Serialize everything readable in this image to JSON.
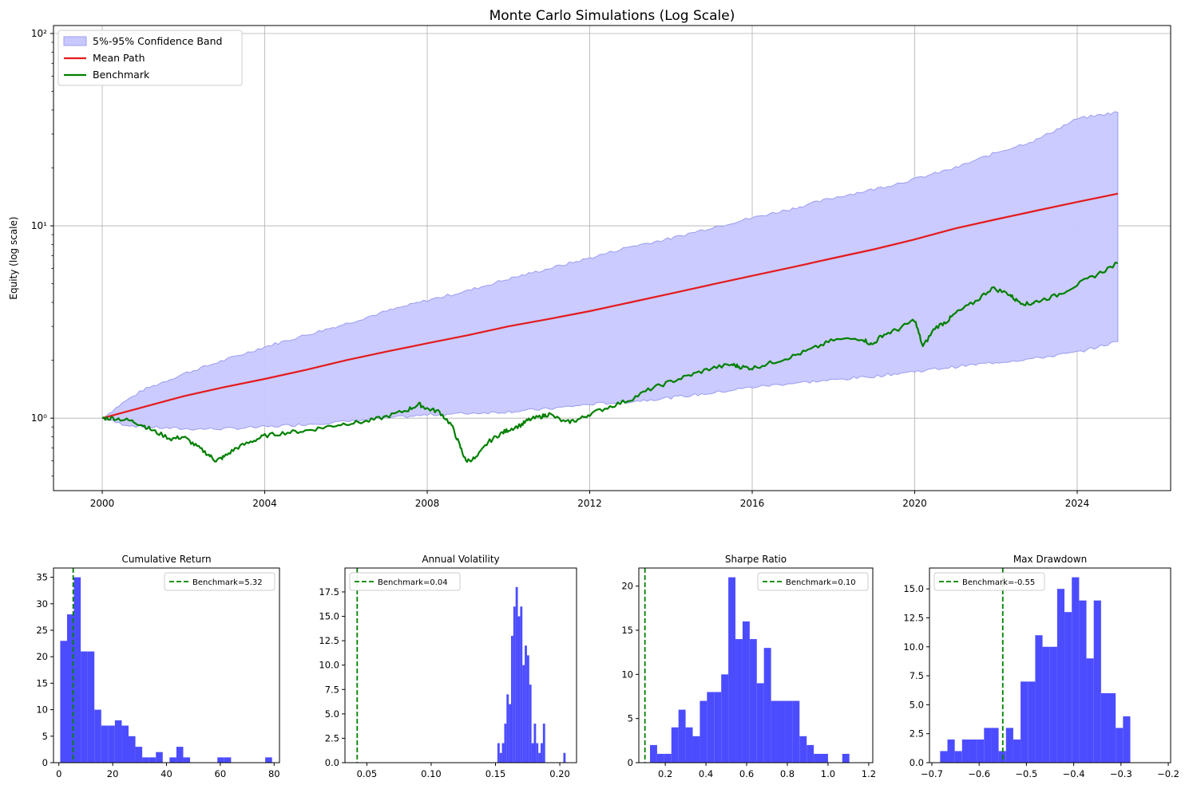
{
  "chart_data": [
    {
      "type": "line",
      "title": "Monte Carlo Simulations (Log Scale)",
      "xlabel": "",
      "ylabel": "Equity (log scale)",
      "yscale": "log",
      "xlim": [
        1998.8,
        2026.3
      ],
      "ylim": [
        0.42,
        110
      ],
      "xticks": [
        2000,
        2004,
        2008,
        2012,
        2016,
        2020,
        2024
      ],
      "xtick_labels": [
        "2000",
        "2004",
        "2008",
        "2012",
        "2016",
        "2020",
        "2024"
      ],
      "yticks": [
        1,
        10,
        100
      ],
      "ytick_labels": [
        "10⁰",
        "10¹",
        "10²"
      ],
      "grid": true,
      "legend_position": "top-left",
      "colors": {
        "band": "#c8c8ff",
        "band_edge": "#9c9cf0",
        "mean": "#e41a1c",
        "benchmark": "#008000"
      },
      "legend": [
        {
          "label": "5%-95% Confidence Band",
          "kind": "band"
        },
        {
          "label": "Mean Path",
          "kind": "mean"
        },
        {
          "label": "Benchmark",
          "kind": "benchmark"
        }
      ],
      "band": {
        "x": [
          2000,
          2000.5,
          2001,
          2002,
          2003,
          2004,
          2005,
          2006,
          2007,
          2008,
          2009,
          2010,
          2011,
          2012,
          2013,
          2014,
          2015,
          2016,
          2017,
          2018,
          2019,
          2020,
          2021,
          2022,
          2023,
          2024,
          2025
        ],
        "lower": [
          1.0,
          0.93,
          0.9,
          0.88,
          0.88,
          0.9,
          0.93,
          0.96,
          1.0,
          1.04,
          1.06,
          1.08,
          1.12,
          1.18,
          1.22,
          1.28,
          1.35,
          1.45,
          1.52,
          1.58,
          1.65,
          1.75,
          1.85,
          1.95,
          2.05,
          2.2,
          2.5
        ],
        "upper": [
          1.0,
          1.2,
          1.4,
          1.7,
          2.0,
          2.35,
          2.7,
          3.1,
          3.6,
          4.1,
          4.6,
          5.3,
          6.0,
          6.8,
          7.8,
          8.6,
          9.8,
          11.0,
          12.3,
          14.0,
          15.5,
          17.5,
          20.0,
          24.0,
          28.0,
          36.0,
          39.0
        ]
      },
      "series": [
        {
          "name": "Mean Path",
          "x": [
            2000,
            2001,
            2002,
            2003,
            2004,
            2005,
            2006,
            2007,
            2008,
            2009,
            2010,
            2011,
            2012,
            2013,
            2014,
            2015,
            2016,
            2017,
            2018,
            2019,
            2020,
            2021,
            2022,
            2023,
            2024,
            2025
          ],
          "values": [
            1.0,
            1.14,
            1.3,
            1.45,
            1.6,
            1.78,
            2.0,
            2.22,
            2.45,
            2.7,
            3.0,
            3.28,
            3.6,
            4.0,
            4.45,
            4.95,
            5.5,
            6.1,
            6.8,
            7.55,
            8.5,
            9.7,
            10.8,
            12.0,
            13.3,
            14.7
          ]
        },
        {
          "name": "Benchmark",
          "x": [
            2000,
            2000.3,
            2000.7,
            2001.0,
            2001.3,
            2001.7,
            2002.0,
            2002.3,
            2002.6,
            2002.8,
            2003.0,
            2003.3,
            2003.7,
            2004.0,
            2004.5,
            2005.0,
            2005.5,
            2006.0,
            2006.5,
            2007.0,
            2007.5,
            2007.8,
            2008.0,
            2008.3,
            2008.6,
            2008.8,
            2008.95,
            2009.2,
            2009.5,
            2009.8,
            2010.0,
            2010.3,
            2010.5,
            2010.8,
            2011.0,
            2011.4,
            2011.7,
            2012.0,
            2012.5,
            2013.0,
            2013.5,
            2014.0,
            2014.5,
            2015.0,
            2015.5,
            2015.7,
            2016.0,
            2016.5,
            2017.0,
            2017.5,
            2018.0,
            2018.7,
            2018.95,
            2019.2,
            2019.6,
            2020.0,
            2020.2,
            2020.5,
            2020.8,
            2021.0,
            2021.5,
            2021.9,
            2022.3,
            2022.5,
            2022.8,
            2023.0,
            2023.5,
            2024.0,
            2024.5,
            2025.0
          ],
          "values": [
            1.0,
            1.0,
            0.97,
            0.92,
            0.85,
            0.78,
            0.8,
            0.72,
            0.65,
            0.6,
            0.63,
            0.7,
            0.76,
            0.81,
            0.84,
            0.86,
            0.9,
            0.94,
            0.96,
            1.02,
            1.1,
            1.18,
            1.12,
            1.08,
            0.92,
            0.72,
            0.6,
            0.62,
            0.75,
            0.83,
            0.87,
            0.92,
            0.98,
            1.02,
            1.05,
            0.95,
            0.98,
            1.05,
            1.15,
            1.25,
            1.42,
            1.55,
            1.68,
            1.82,
            1.9,
            1.85,
            1.82,
            1.95,
            2.1,
            2.3,
            2.55,
            2.6,
            2.4,
            2.7,
            2.9,
            3.25,
            2.35,
            2.95,
            3.2,
            3.5,
            4.05,
            4.75,
            4.45,
            4.1,
            3.9,
            4.05,
            4.35,
            4.95,
            5.6,
            6.4
          ]
        }
      ]
    },
    {
      "type": "bar",
      "title": "Cumulative Return",
      "xlim": [
        -2,
        82
      ],
      "ylim": [
        0,
        36.75
      ],
      "xticks": [
        0,
        20,
        40,
        60,
        80
      ],
      "yticks": [
        0,
        5,
        10,
        15,
        20,
        25,
        30,
        35
      ],
      "bin_start": 0.5,
      "bin_width": 2.54,
      "counts": [
        23,
        28,
        35,
        21,
        21,
        10,
        7,
        7,
        8,
        7,
        5,
        3,
        1,
        1,
        2,
        0,
        1,
        3,
        1,
        0,
        0,
        0,
        0,
        1,
        1,
        0,
        0,
        0,
        0,
        0,
        1
      ],
      "benchmark_value": 5.32,
      "benchmark_label": "Benchmark=5.32",
      "legend_position": "top-right"
    },
    {
      "type": "bar",
      "title": "Annual Volatility",
      "xlim": [
        0.033,
        0.213
      ],
      "ylim": [
        0,
        19.95
      ],
      "xticks": [
        0.05,
        0.1,
        0.15,
        0.2
      ],
      "xtick_labels": [
        "0.05",
        "0.10",
        "0.15",
        "0.20"
      ],
      "yticks": [
        0,
        2.5,
        5,
        7.5,
        10,
        12.5,
        15,
        17.5
      ],
      "ytick_labels": [
        "0.0",
        "2.5",
        "5.0",
        "7.5",
        "10.0",
        "12.5",
        "15.0",
        "17.5"
      ],
      "bin_start": 0.1515,
      "bin_width": 0.001767,
      "counts": [
        2,
        1,
        2,
        4,
        7,
        6,
        13,
        16,
        18,
        15,
        16,
        10,
        12,
        11,
        8,
        2,
        4,
        2,
        1,
        2,
        4,
        0,
        0,
        0,
        0,
        0,
        0,
        0,
        0,
        1
      ],
      "benchmark_value": 0.0425,
      "benchmark_label": "Benchmark=0.04",
      "legend_position": "top-left"
    },
    {
      "type": "bar",
      "title": "Sharpe Ratio",
      "xlim": [
        0.07,
        1.22
      ],
      "ylim": [
        0,
        22.05
      ],
      "xticks": [
        0.2,
        0.4,
        0.6,
        0.8,
        1.0,
        1.2
      ],
      "xtick_labels": [
        "0.2",
        "0.4",
        "0.6",
        "0.8",
        "1.0",
        "1.2"
      ],
      "yticks": [
        0,
        5,
        10,
        15,
        20
      ],
      "bin_start": 0.125,
      "bin_width": 0.035,
      "counts": [
        2,
        1,
        1,
        4,
        6,
        4,
        3,
        7,
        8,
        8,
        10,
        21,
        14,
        16,
        14,
        9,
        13,
        7,
        7,
        7,
        7,
        3,
        2,
        1,
        1,
        0,
        0,
        1
      ],
      "benchmark_value": 0.1,
      "benchmark_label": "Benchmark=0.10",
      "legend_position": "top-right"
    },
    {
      "type": "bar",
      "title": "Max Drawdown",
      "xlim": [
        -0.705,
        -0.195
      ],
      "ylim": [
        0,
        16.8
      ],
      "xticks": [
        -0.7,
        -0.6,
        -0.5,
        -0.4,
        -0.3,
        -0.2
      ],
      "xtick_labels": [
        "−0.7",
        "−0.6",
        "−0.5",
        "−0.4",
        "−0.3",
        "−0.2"
      ],
      "yticks": [
        0,
        2.5,
        5,
        7.5,
        10,
        12.5,
        15
      ],
      "ytick_labels": [
        "0.0",
        "2.5",
        "5.0",
        "7.5",
        "10.0",
        "12.5",
        "15.0"
      ],
      "bin_start": -0.6825,
      "bin_width": 0.01547,
      "counts": [
        1,
        2,
        1,
        2,
        2,
        2,
        3,
        3,
        1,
        3,
        2,
        7,
        7,
        11,
        10,
        10,
        15,
        13,
        16,
        14,
        9,
        14,
        6,
        6,
        3,
        4
      ],
      "benchmark_value": -0.55,
      "benchmark_label": "Benchmark=-0.55",
      "legend_position": "top-left"
    }
  ]
}
